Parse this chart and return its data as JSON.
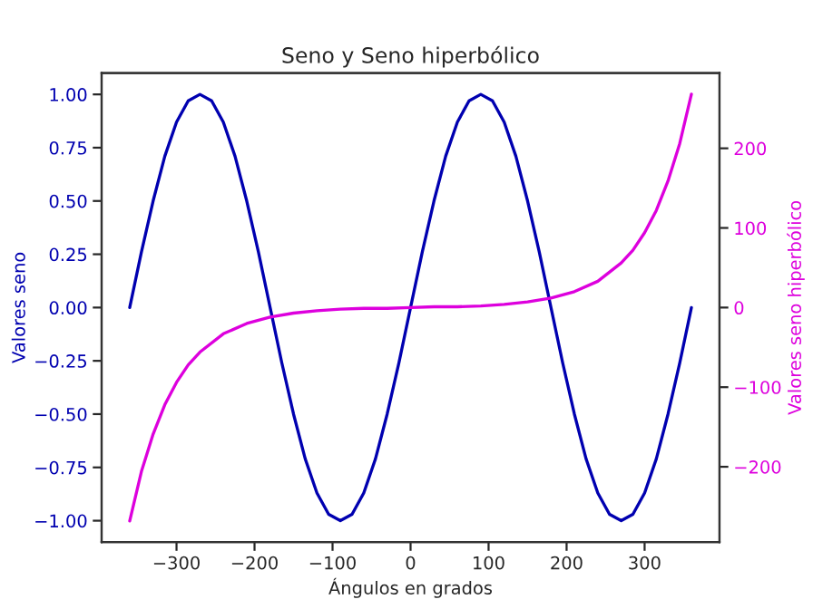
{
  "chart_data": {
    "type": "line",
    "title": "Seno y Seno hiperbólico",
    "xlabel": "Ángulos en grados",
    "ylabel": "Valores seno",
    "y2label": "Valores seno hiperbólico",
    "xlim": [
      -396,
      396
    ],
    "xticks": [
      {
        "value": -300,
        "label": "−300"
      },
      {
        "value": -200,
        "label": "−200"
      },
      {
        "value": -100,
        "label": "−100"
      },
      0,
      100,
      200,
      300
    ],
    "ylim": [
      -1.1,
      1.1
    ],
    "yticks": [
      {
        "value": -1,
        "label": "−1.00"
      },
      {
        "value": -0.75,
        "label": "−0.75"
      },
      {
        "value": -0.5,
        "label": "−0.50"
      },
      {
        "value": -0.25,
        "label": "−0.25"
      },
      {
        "value": 0,
        "label": "0.00"
      },
      {
        "value": 0.25,
        "label": "0.25"
      },
      {
        "value": 0.5,
        "label": "0.50"
      },
      {
        "value": 0.75,
        "label": "0.75"
      },
      {
        "value": 1,
        "label": "1.00"
      }
    ],
    "y2lim": [
      -294.5,
      294.5
    ],
    "y2ticks": [
      {
        "value": -200,
        "label": "−200"
      },
      {
        "value": -100,
        "label": "−100"
      },
      0,
      100,
      200
    ],
    "grid": false,
    "legend": false,
    "marker": "none",
    "line_style": "solid",
    "series": [
      {
        "color": "#0000b0",
        "x": [
          -360,
          -345,
          -330,
          -315,
          -300,
          -285,
          -270,
          -255,
          -240,
          -225,
          -210,
          -195,
          -180,
          -165,
          -150,
          -135,
          -120,
          -105,
          -90,
          -75,
          -60,
          -45,
          -30,
          -15,
          0,
          15,
          30,
          45,
          60,
          75,
          90,
          105,
          120,
          135,
          150,
          165,
          180,
          195,
          210,
          225,
          240,
          255,
          270,
          285,
          300,
          315,
          330,
          345,
          360
        ],
        "values": [
          0,
          0.26,
          0.5,
          0.71,
          0.87,
          0.97,
          1,
          0.97,
          0.87,
          0.71,
          0.5,
          0.26,
          0,
          -0.26,
          -0.5,
          -0.71,
          -0.87,
          -0.97,
          -1,
          -0.97,
          -0.87,
          -0.71,
          -0.5,
          -0.26,
          0,
          0.26,
          0.5,
          0.71,
          0.87,
          0.97,
          1,
          0.97,
          0.87,
          0.71,
          0.5,
          0.26,
          0,
          -0.26,
          -0.5,
          -0.71,
          -0.87,
          -0.97,
          -1,
          -0.97,
          -0.87,
          -0.71,
          -0.5,
          -0.26,
          0
        ]
      },
      {
        "color": "#dd00dd",
        "axis": "y2",
        "x": [
          -360,
          -345,
          -330,
          -315,
          -300,
          -285,
          -270,
          -240,
          -210,
          -180,
          -150,
          -120,
          -90,
          -60,
          -30,
          0,
          30,
          60,
          90,
          120,
          150,
          180,
          210,
          240,
          270,
          285,
          300,
          315,
          330,
          345,
          360
        ],
        "values": [
          -268,
          -206,
          -159,
          -122,
          -94,
          -72,
          -56,
          -33,
          -20,
          -12,
          -7,
          -4,
          -2,
          -1,
          -1,
          0,
          1,
          1,
          2,
          4,
          7,
          12,
          20,
          33,
          56,
          72,
          94,
          122,
          159,
          206,
          268
        ]
      }
    ]
  }
}
